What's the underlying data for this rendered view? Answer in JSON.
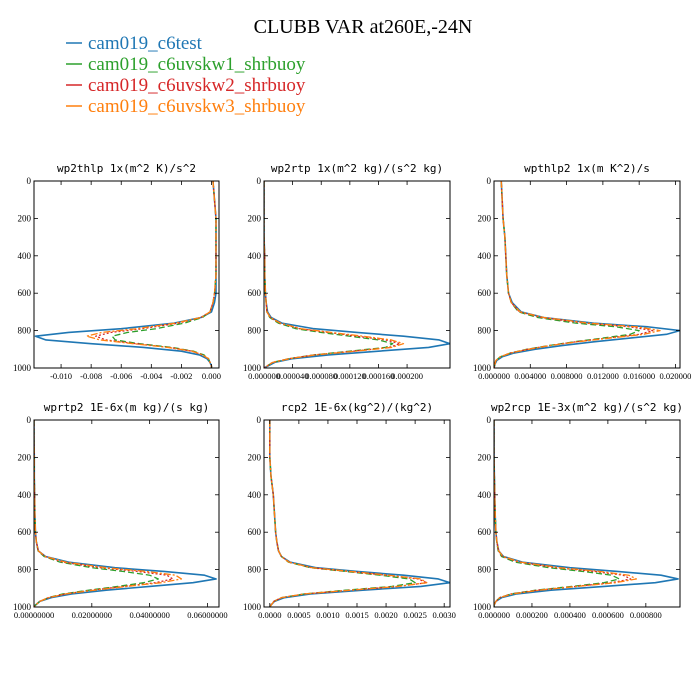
{
  "figure": {
    "title": "CLUBB VAR at260E,-24N"
  },
  "legend": [
    {
      "name": "cam019_c6test",
      "color": "#1f77b4",
      "dash": ""
    },
    {
      "name": "cam019_c6uvskw1_shrbuoy",
      "color": "#2ca02c",
      "dash": "6,3"
    },
    {
      "name": "cam019_c6uvskw2_shrbuoy",
      "color": "#d62728",
      "dash": "2,2"
    },
    {
      "name": "cam019_c6uvskw3_shrbuoy",
      "color": "#ff7f0e",
      "dash": "7,2,2,2"
    }
  ],
  "chart_data": [
    {
      "type": "line",
      "title": "wp2thlp  1x(m^2 K)/s^2",
      "xlim": [
        -0.0118,
        0.0005
      ],
      "ylim": [
        1000,
        0
      ],
      "y_reversed": true,
      "xticks": [
        -0.01,
        -0.008,
        -0.006,
        -0.004,
        -0.002,
        0.0
      ],
      "xtick_labels": [
        "-0.010",
        "-0.008",
        "-0.006",
        "-0.004",
        "-0.002",
        "0.000"
      ],
      "yticks": [
        0,
        200,
        400,
        600,
        800,
        1000
      ],
      "ytick_labels": [
        "0",
        "200",
        "400",
        "600",
        "800",
        "1000"
      ],
      "y": [
        0,
        100,
        200,
        300,
        400,
        500,
        600,
        650,
        700,
        730,
        760,
        790,
        810,
        830,
        850,
        870,
        890,
        910,
        930,
        950,
        970,
        990,
        1000
      ],
      "series": [
        {
          "x": [
            0.0001,
            0.0002,
            0.0003,
            0.0003,
            0.0003,
            0.0003,
            0.0003,
            0.0002,
            0.0,
            -0.0007,
            -0.0025,
            -0.006,
            -0.0095,
            -0.0117,
            -0.011,
            -0.008,
            -0.0045,
            -0.002,
            -0.0008,
            -0.0003,
            -0.0001,
            0.0,
            0.0
          ]
        },
        {
          "x": [
            0.0001,
            0.0002,
            0.0003,
            0.0003,
            0.0003,
            0.0003,
            0.0002,
            0.0001,
            -0.0001,
            -0.0006,
            -0.0018,
            -0.0037,
            -0.0056,
            -0.0066,
            -0.0064,
            -0.0048,
            -0.0026,
            -0.0012,
            -0.0005,
            -0.0002,
            -0.0001,
            0.0,
            0.0
          ]
        },
        {
          "x": [
            0.0001,
            0.0002,
            0.0003,
            0.0003,
            0.0003,
            0.0003,
            0.0002,
            0.0001,
            -0.0001,
            -0.0007,
            -0.0022,
            -0.0046,
            -0.0067,
            -0.0077,
            -0.007,
            -0.005,
            -0.0028,
            -0.0013,
            -0.0006,
            -0.0002,
            -0.0001,
            0.0,
            0.0
          ]
        },
        {
          "x": [
            0.0001,
            0.0002,
            0.0003,
            0.0003,
            0.0003,
            0.0003,
            0.0002,
            0.0001,
            -0.0001,
            -0.0007,
            -0.0024,
            -0.005,
            -0.0073,
            -0.0083,
            -0.0074,
            -0.0052,
            -0.0029,
            -0.0013,
            -0.0006,
            -0.0002,
            -0.0001,
            0.0,
            0.0
          ]
        }
      ]
    },
    {
      "type": "line",
      "title": "wp2rtp  1x(m^2 kg)/(s^2 kg)",
      "xlim": [
        0.0,
        0.00026
      ],
      "ylim": [
        1000,
        0
      ],
      "y_reversed": true,
      "xticks": [
        0.0,
        4e-05,
        8e-05,
        0.00012,
        0.00016,
        0.0002
      ],
      "xtick_labels": [
        "0.000000",
        "0.000040",
        "0.000080",
        "0.000120",
        "0.000160",
        "0.000200"
      ],
      "yticks": [
        0,
        200,
        400,
        600,
        800,
        1000
      ],
      "ytick_labels": [
        "0",
        "200",
        "400",
        "600",
        "800",
        "1000"
      ],
      "y": [
        0,
        100,
        200,
        300,
        400,
        500,
        600,
        650,
        700,
        730,
        760,
        790,
        810,
        830,
        850,
        870,
        890,
        910,
        930,
        950,
        970,
        990,
        1000
      ],
      "series": [
        {
          "x": [
            0.0,
            0.0,
            0.0,
            0.0,
            1e-06,
            1e-06,
            2e-06,
            3e-06,
            5e-06,
            1e-05,
            2.5e-05,
            7e-05,
            0.00013,
            0.000195,
            0.000245,
            0.00026,
            0.00023,
            0.00016,
            9e-05,
            4e-05,
            1.5e-05,
            5e-06,
            0.0
          ]
        },
        {
          "x": [
            0.0,
            0.0,
            0.0,
            0.0,
            1e-06,
            1e-06,
            2e-06,
            3e-06,
            4e-06,
            8e-06,
            2e-05,
            4.5e-05,
            8e-05,
            0.00012,
            0.00016,
            0.00018,
            0.00017,
            0.00012,
            7e-05,
            3.5e-05,
            1.2e-05,
            4e-06,
            0.0
          ]
        },
        {
          "x": [
            0.0,
            0.0,
            0.0,
            0.0,
            1e-06,
            1e-06,
            2e-06,
            3e-06,
            4e-06,
            9e-06,
            2.2e-05,
            5e-05,
            9e-05,
            0.00013,
            0.00017,
            0.00019,
            0.000175,
            0.000125,
            7e-05,
            3.5e-05,
            1.2e-05,
            4e-06,
            0.0
          ]
        },
        {
          "x": [
            0.0,
            0.0,
            0.0,
            0.0,
            1e-06,
            1e-06,
            2e-06,
            3e-06,
            4e-06,
            9e-06,
            2.3e-05,
            5.2e-05,
            9.5e-05,
            0.000138,
            0.000178,
            0.000195,
            0.000178,
            0.000128,
            7.2e-05,
            3.6e-05,
            1.2e-05,
            4e-06,
            0.0
          ]
        }
      ]
    },
    {
      "type": "line",
      "title": "wpthlp2  1x(m K^2)/s",
      "xlim": [
        0.0,
        0.0205
      ],
      "ylim": [
        1000,
        0
      ],
      "y_reversed": true,
      "xticks": [
        0.0,
        0.004,
        0.008,
        0.012,
        0.016,
        0.02
      ],
      "xtick_labels": [
        "0.000000",
        "0.004000",
        "0.008000",
        "0.012000",
        "0.016000",
        "0.020000"
      ],
      "yticks": [
        0,
        200,
        400,
        600,
        800,
        1000
      ],
      "ytick_labels": [
        "0",
        "200",
        "400",
        "600",
        "800",
        "1000"
      ],
      "y": [
        0,
        100,
        200,
        250,
        300,
        400,
        500,
        600,
        650,
        700,
        730,
        760,
        780,
        800,
        820,
        840,
        860,
        880,
        900,
        920,
        940,
        960,
        980,
        1000
      ],
      "series": [
        {
          "x": [
            0.0008,
            0.0009,
            0.001,
            0.0011,
            0.0012,
            0.0013,
            0.0014,
            0.0016,
            0.002,
            0.003,
            0.0055,
            0.011,
            0.017,
            0.0205,
            0.019,
            0.015,
            0.011,
            0.0075,
            0.0045,
            0.0022,
            0.0009,
            0.0003,
            0.0001,
            0.0
          ]
        },
        {
          "x": [
            0.0008,
            0.0009,
            0.001,
            0.0011,
            0.0012,
            0.0013,
            0.0014,
            0.0016,
            0.0019,
            0.0027,
            0.0048,
            0.009,
            0.0135,
            0.016,
            0.015,
            0.012,
            0.0088,
            0.006,
            0.0036,
            0.0018,
            0.0007,
            0.0002,
            0.0001,
            0.0
          ]
        },
        {
          "x": [
            0.0008,
            0.0009,
            0.001,
            0.0011,
            0.0012,
            0.0013,
            0.0014,
            0.0016,
            0.0019,
            0.0028,
            0.0052,
            0.01,
            0.015,
            0.0175,
            0.016,
            0.0125,
            0.009,
            0.0061,
            0.0037,
            0.0018,
            0.0007,
            0.0002,
            0.0001,
            0.0
          ]
        },
        {
          "x": [
            0.0008,
            0.0009,
            0.001,
            0.0011,
            0.0012,
            0.0013,
            0.0014,
            0.0016,
            0.0019,
            0.0029,
            0.0055,
            0.0105,
            0.0158,
            0.0183,
            0.0165,
            0.0128,
            0.0092,
            0.0062,
            0.0038,
            0.0018,
            0.0007,
            0.0002,
            0.0001,
            0.0
          ]
        }
      ]
    },
    {
      "type": "line",
      "title": "wprtp2  1E-6x(m kg)/(s kg)",
      "xlim": [
        0.0,
        0.064
      ],
      "ylim": [
        1000,
        0
      ],
      "y_reversed": true,
      "xticks": [
        0.0,
        0.02,
        0.04,
        0.06
      ],
      "xtick_labels": [
        "0.00000000",
        "0.02000000",
        "0.04000000",
        "0.06000000"
      ],
      "yticks": [
        0,
        200,
        400,
        600,
        800,
        1000
      ],
      "ytick_labels": [
        "0",
        "200",
        "400",
        "600",
        "800",
        "1000"
      ],
      "y": [
        0,
        100,
        200,
        300,
        400,
        500,
        600,
        650,
        700,
        730,
        760,
        790,
        810,
        830,
        850,
        870,
        890,
        910,
        930,
        950,
        970,
        990,
        1000
      ],
      "series": [
        {
          "x": [
            0.0,
            0.0,
            0.0001,
            0.0001,
            0.0002,
            0.0003,
            0.0005,
            0.0008,
            0.0015,
            0.004,
            0.012,
            0.028,
            0.045,
            0.059,
            0.063,
            0.055,
            0.04,
            0.025,
            0.013,
            0.006,
            0.002,
            0.0005,
            0.0
          ]
        },
        {
          "x": [
            0.0,
            0.0,
            0.0001,
            0.0001,
            0.0002,
            0.0003,
            0.0005,
            0.0008,
            0.0014,
            0.0035,
            0.009,
            0.02,
            0.031,
            0.04,
            0.043,
            0.038,
            0.029,
            0.019,
            0.01,
            0.005,
            0.002,
            0.0005,
            0.0
          ]
        },
        {
          "x": [
            0.0,
            0.0,
            0.0001,
            0.0001,
            0.0002,
            0.0003,
            0.0005,
            0.0008,
            0.0015,
            0.0038,
            0.01,
            0.023,
            0.036,
            0.046,
            0.048,
            0.042,
            0.031,
            0.02,
            0.011,
            0.005,
            0.002,
            0.0005,
            0.0
          ]
        },
        {
          "x": [
            0.0,
            0.0,
            0.0001,
            0.0001,
            0.0002,
            0.0003,
            0.0005,
            0.0008,
            0.0015,
            0.004,
            0.011,
            0.025,
            0.039,
            0.049,
            0.051,
            0.044,
            0.032,
            0.021,
            0.011,
            0.005,
            0.002,
            0.0005,
            0.0
          ]
        }
      ]
    },
    {
      "type": "line",
      "title": "rcp2  1E-6x(kg^2)/(kg^2)",
      "xlim": [
        -0.0001,
        0.0031
      ],
      "ylim": [
        1000,
        0
      ],
      "y_reversed": true,
      "xticks": [
        0.0,
        0.0005,
        0.001,
        0.0015,
        0.002,
        0.0025,
        0.003
      ],
      "xtick_labels": [
        "0.0000",
        "0.0005",
        "0.0010",
        "0.0015",
        "0.0020",
        "0.0025",
        "0.0030"
      ],
      "yticks": [
        0,
        200,
        400,
        600,
        800,
        1000
      ],
      "ytick_labels": [
        "0",
        "200",
        "400",
        "600",
        "800",
        "1000"
      ],
      "y": [
        0,
        100,
        200,
        300,
        350,
        400,
        500,
        600,
        650,
        700,
        730,
        760,
        790,
        810,
        830,
        850,
        870,
        890,
        910,
        930,
        950,
        970,
        990,
        1000
      ],
      "series": [
        {
          "x": [
            0.0,
            0.0,
            0.0,
            2e-05,
            4e-05,
            6e-05,
            8e-05,
            0.0001,
            0.00012,
            0.00015,
            0.0002,
            0.00035,
            0.0008,
            0.0015,
            0.0023,
            0.0029,
            0.0031,
            0.0026,
            0.0016,
            0.0007,
            0.00025,
            8e-05,
            2e-05,
            0.0
          ]
        },
        {
          "x": [
            0.0,
            0.0,
            0.0,
            2e-05,
            4e-05,
            6e-05,
            8e-05,
            0.0001,
            0.00012,
            0.00015,
            0.0002,
            0.00032,
            0.0007,
            0.0013,
            0.0019,
            0.0024,
            0.0025,
            0.0021,
            0.0013,
            0.0006,
            0.0002,
            7e-05,
            2e-05,
            0.0
          ]
        },
        {
          "x": [
            0.0,
            0.0,
            0.0,
            2e-05,
            4e-05,
            6e-05,
            8e-05,
            0.0001,
            0.00012,
            0.00015,
            0.0002,
            0.00033,
            0.00072,
            0.00135,
            0.002,
            0.00255,
            0.0027,
            0.0022,
            0.0014,
            0.0006,
            0.0002,
            7e-05,
            2e-05,
            0.0
          ]
        },
        {
          "x": [
            0.0,
            0.0,
            0.0,
            2e-05,
            4e-05,
            6e-05,
            8e-05,
            0.0001,
            0.00012,
            0.00015,
            0.0002,
            0.00033,
            0.00073,
            0.0014,
            0.00205,
            0.0026,
            0.0027,
            0.0022,
            0.0014,
            0.0006,
            0.0002,
            7e-05,
            2e-05,
            0.0
          ]
        }
      ]
    },
    {
      "type": "line",
      "title": "wp2rcp  1E-3x(m^2 kg)/(s^2 kg)",
      "xlim": [
        0.0,
        0.00098
      ],
      "ylim": [
        1000,
        0
      ],
      "y_reversed": true,
      "xticks": [
        0.0,
        0.0002,
        0.0004,
        0.0006,
        0.0008
      ],
      "xtick_labels": [
        "0.000000",
        "0.000200",
        "0.000400",
        "0.000600",
        "0.000800"
      ],
      "yticks": [
        0,
        200,
        400,
        600,
        800,
        1000
      ],
      "ytick_labels": [
        "0",
        "200",
        "400",
        "600",
        "800",
        "1000"
      ],
      "y": [
        0,
        100,
        200,
        300,
        400,
        500,
        600,
        650,
        700,
        730,
        760,
        790,
        810,
        830,
        850,
        870,
        890,
        910,
        930,
        950,
        970,
        990,
        1000
      ],
      "series": [
        {
          "x": [
            0.0,
            0.0,
            0.0,
            2e-06,
            4e-06,
            6e-06,
            1e-05,
            1.5e-05,
            2.5e-05,
            5e-05,
            0.00015,
            0.0004,
            0.00065,
            0.00088,
            0.00097,
            0.00085,
            0.00058,
            0.0003,
            0.00012,
            4e-05,
            1e-05,
            0.0,
            0.0
          ]
        },
        {
          "x": [
            0.0,
            0.0,
            0.0,
            2e-06,
            4e-06,
            6e-06,
            1e-05,
            1.4e-05,
            2.2e-05,
            4e-05,
            0.00011,
            0.00029,
            0.00047,
            0.00062,
            0.00066,
            0.00058,
            0.00041,
            0.00022,
            9e-05,
            3e-05,
            1e-05,
            0.0,
            0.0
          ]
        },
        {
          "x": [
            0.0,
            0.0,
            0.0,
            2e-06,
            4e-06,
            6e-06,
            1e-05,
            1.5e-05,
            2.4e-05,
            4.5e-05,
            0.00013,
            0.00033,
            0.00053,
            0.00068,
            0.00072,
            0.00062,
            0.00043,
            0.00023,
            9e-05,
            3e-05,
            1e-05,
            0.0,
            0.0
          ]
        },
        {
          "x": [
            0.0,
            0.0,
            0.0,
            2e-06,
            4e-06,
            6e-06,
            1e-05,
            1.5e-05,
            2.5e-05,
            4.8e-05,
            0.00014,
            0.00035,
            0.00056,
            0.00071,
            0.00075,
            0.00064,
            0.00044,
            0.00024,
            0.0001,
            3e-05,
            1e-05,
            0.0,
            0.0
          ]
        }
      ]
    }
  ]
}
